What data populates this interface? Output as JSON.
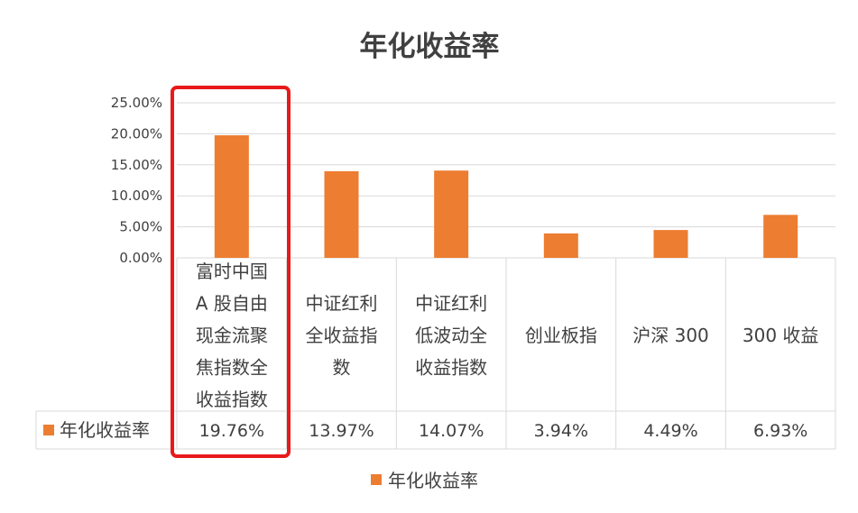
{
  "colors": {
    "bar": "#ED7D31",
    "highlight": "#E8191A",
    "grid": "#D9D9D9",
    "text": "#404040"
  },
  "chart_data": {
    "type": "bar",
    "title": "年化收益率",
    "categories": [
      "富时中国A股自由现金流聚焦指数全收益指数",
      "中证红利全收益指数",
      "中证红利低波动全收益指数",
      "创业板指",
      "沪深 300",
      "300 收益"
    ],
    "category_lines": [
      [
        "富时中国",
        "A 股自由",
        "现金流聚",
        "焦指数全",
        "收益指数"
      ],
      [
        "中证红利",
        "全收益指",
        "数"
      ],
      [
        "中证红利",
        "低波动全",
        "收益指数"
      ],
      [
        "创业板指"
      ],
      [
        "沪深 300"
      ],
      [
        "300 收益"
      ]
    ],
    "series": [
      {
        "name": "年化收益率",
        "values": [
          19.76,
          13.97,
          14.07,
          3.94,
          4.49,
          6.93
        ],
        "labels": [
          "19.76%",
          "13.97%",
          "14.07%",
          "3.94%",
          "4.49%",
          "6.93%"
        ]
      }
    ],
    "ylim": [
      0,
      25
    ],
    "yticks": [
      "0.00%",
      "5.00%",
      "10.00%",
      "15.00%",
      "20.00%",
      "25.00%"
    ],
    "ytick_values": [
      0,
      5,
      10,
      15,
      20,
      25
    ],
    "grid": true,
    "legend": "bottom",
    "data_table": true,
    "highlighted_category": "富时中国A股自由现金流聚焦指数全收益指数"
  }
}
